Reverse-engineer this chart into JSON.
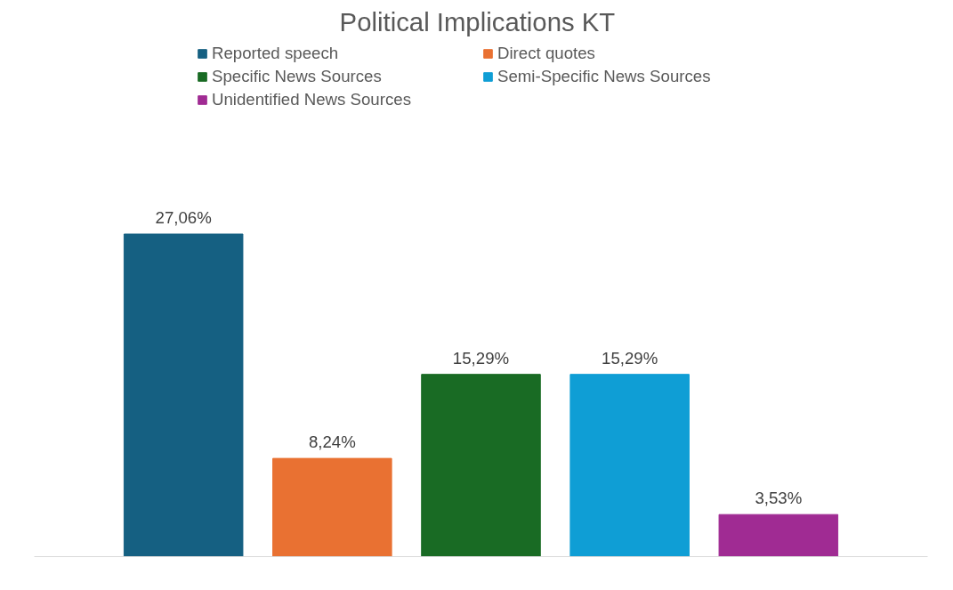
{
  "chart_data": {
    "type": "bar",
    "title": "Political Implications  KT",
    "categories": [
      null
    ],
    "tick_labels": false,
    "grid": false,
    "legend": "top",
    "series": [
      {
        "name": "Reported speech",
        "color": "#156082",
        "values": [
          27.06
        ],
        "value_labels": [
          "27,06%"
        ]
      },
      {
        "name": "Direct quotes",
        "color": "#e97132",
        "values": [
          8.24
        ],
        "value_labels": [
          "8,24%"
        ]
      },
      {
        "name": "Specific News Sources",
        "color": "#196b24",
        "values": [
          15.29
        ],
        "value_labels": [
          "15,29%"
        ]
      },
      {
        "name": "Semi-Specific News Sources",
        "color": "#0f9ed5",
        "values": [
          15.29
        ],
        "value_labels": [
          "15,29%"
        ]
      },
      {
        "name": "Unidentified News Sources",
        "color": "#a02b93",
        "values": [
          3.53
        ],
        "value_labels": [
          "3,53%"
        ]
      }
    ]
  }
}
